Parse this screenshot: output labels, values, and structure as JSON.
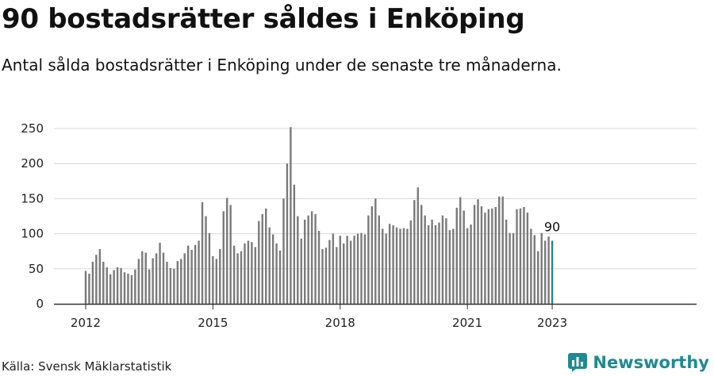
{
  "header": {
    "title": "90 bostadsrätter såldes i Enköping",
    "subtitle": "Antal sålda bostadsrätter i Enköping under de senaste tre månaderna."
  },
  "footer": {
    "source": "Källa: Svensk Mäklarstatistik",
    "brand": "Newsworthy"
  },
  "colors": {
    "bar": "#7a7a7a",
    "highlight": "#1e8a93",
    "grid": "#d9d9d9",
    "axis": "#333333"
  },
  "chart_data": {
    "type": "bar",
    "title": "",
    "xlabel": "",
    "ylabel": "",
    "ylim": [
      0,
      250
    ],
    "yticks": [
      0,
      50,
      100,
      150,
      200,
      250
    ],
    "xticks": [
      "2012",
      "2015",
      "2018",
      "2021",
      "2023"
    ],
    "grid": true,
    "highlight_last": true,
    "last_label": "90",
    "start_month": "2012-01",
    "end_month": "2023-01",
    "values": [
      47,
      43,
      60,
      70,
      78,
      60,
      52,
      42,
      48,
      52,
      51,
      45,
      43,
      41,
      49,
      64,
      75,
      73,
      49,
      65,
      72,
      87,
      73,
      60,
      51,
      50,
      61,
      64,
      72,
      83,
      77,
      84,
      90,
      145,
      125,
      101,
      68,
      64,
      78,
      132,
      151,
      141,
      83,
      72,
      75,
      86,
      90,
      88,
      81,
      118,
      128,
      136,
      109,
      99,
      86,
      76,
      150,
      200,
      252,
      170,
      125,
      93,
      120,
      126,
      132,
      128,
      104,
      78,
      80,
      91,
      100,
      81,
      97,
      86,
      97,
      90,
      97,
      100,
      101,
      99,
      126,
      139,
      150,
      126,
      107,
      100,
      114,
      112,
      109,
      107,
      108,
      107,
      119,
      148,
      166,
      141,
      126,
      112,
      120,
      112,
      116,
      126,
      122,
      105,
      107,
      137,
      152,
      133,
      108,
      113,
      141,
      149,
      139,
      130,
      135,
      136,
      138,
      153,
      153,
      120,
      101,
      101,
      135,
      136,
      138,
      130,
      107,
      98,
      75,
      101,
      90,
      96,
      90
    ]
  }
}
